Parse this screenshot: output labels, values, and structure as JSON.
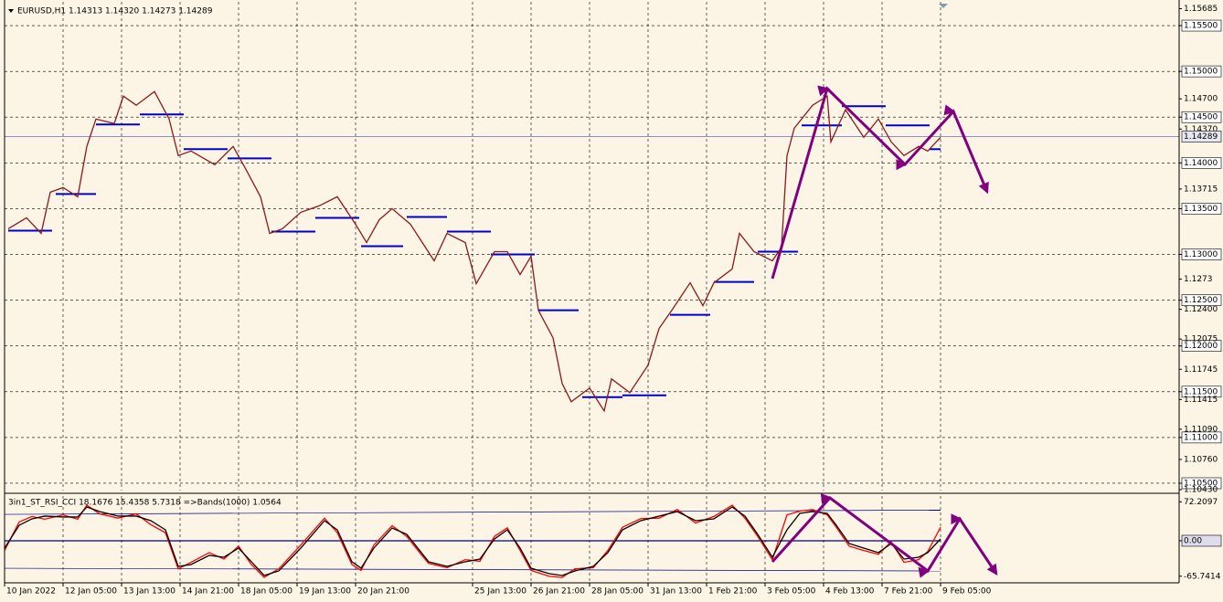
{
  "chart_data": [
    {
      "type": "line",
      "title": "EURUSD,H1  1.14313 1.14320 1.14273 1.14289",
      "x": [
        2,
        12,
        20,
        25,
        32,
        40,
        45,
        50,
        60,
        65,
        72,
        82,
        90,
        95,
        102,
        115,
        125,
        132,
        140,
        145,
        152,
        162,
        172,
        182,
        192,
        198,
        205,
        212,
        222,
        235,
        242,
        252,
        258,
        268,
        275,
        282,
        288,
        292,
        300,
        305,
        310,
        320,
        328,
        332,
        342,
        352,
        358,
        365,
        375,
        382,
        388,
        398,
        402,
        410,
        420,
        425,
        428,
        432,
        442,
        450,
        452,
        460,
        470,
        478,
        485,
        492,
        500,
        505,
        512
      ],
      "series": [
        {
          "color": "#8b1a1a",
          "values": [
            1.1328,
            1.134,
            1.1323,
            1.1368,
            1.1373,
            1.1363,
            1.1418,
            1.1448,
            1.1443,
            1.1473,
            1.1463,
            1.1478,
            1.1448,
            1.1408,
            1.1413,
            1.1398,
            1.1418,
            1.1393,
            1.1363,
            1.1323,
            1.1328,
            1.1346,
            1.1353,
            1.1363,
            1.1333,
            1.1313,
            1.1338,
            1.135,
            1.1333,
            1.1293,
            1.1323,
            1.1313,
            1.1268,
            1.1303,
            1.1303,
            1.1278,
            1.1298,
            1.1239,
            1.1209,
            1.1159,
            1.1139,
            1.1154,
            1.1129,
            1.1164,
            1.1149,
            1.1179,
            1.1219,
            1.1239,
            1.1269,
            1.1244,
            1.1269,
            1.1284,
            1.1323,
            1.1303,
            1.1293,
            1.1308,
            1.1408,
            1.1438,
            1.1463,
            1.1473,
            1.1423,
            1.1458,
            1.1428,
            1.1448,
            1.1423,
            1.1408,
            1.1418,
            1.1413,
            1.1428
          ]
        }
      ],
      "levels_color": "#0000cd",
      "levels": [
        {
          "x": [
            2,
            26
          ],
          "value": 1.1326
        },
        {
          "x": [
            28,
            50
          ],
          "value": 1.1366
        },
        {
          "x": [
            50,
            74
          ],
          "value": 1.1442
        },
        {
          "x": [
            74,
            98
          ],
          "value": 1.1453
        },
        {
          "x": [
            98,
            122
          ],
          "value": 1.1415
        },
        {
          "x": [
            122,
            146
          ],
          "value": 1.1405
        },
        {
          "x": [
            146,
            170
          ],
          "value": 1.1325
        },
        {
          "x": [
            170,
            194
          ],
          "value": 1.134
        },
        {
          "x": [
            195,
            218
          ],
          "value": 1.1309
        },
        {
          "x": [
            220,
            242
          ],
          "value": 1.1341
        },
        {
          "x": [
            242,
            266
          ],
          "value": 1.1325
        },
        {
          "x": [
            266,
            290
          ],
          "value": 1.13
        },
        {
          "x": [
            292,
            314
          ],
          "value": 1.1239
        },
        {
          "x": [
            316,
            338
          ],
          "value": 1.1144
        },
        {
          "x": [
            338,
            362
          ],
          "value": 1.1146
        },
        {
          "x": [
            364,
            386
          ],
          "value": 1.1234
        },
        {
          "x": [
            388,
            410
          ],
          "value": 1.127
        },
        {
          "x": [
            412,
            434
          ],
          "value": 1.1303
        },
        {
          "x": [
            436,
            458
          ],
          "value": 1.1441
        },
        {
          "x": [
            458,
            482
          ],
          "value": 1.1462
        },
        {
          "x": [
            482,
            506
          ],
          "value": 1.1441
        },
        {
          "x": [
            506,
            512
          ],
          "value": 1.1415
        }
      ],
      "current_price": 1.14289,
      "xlim": [
        0,
        642.5
      ],
      "ylim": [
        1.1042,
        1.1576
      ],
      "yticks": [
        {
          "value": 1.155,
          "label": "1.15500"
        },
        {
          "value": 1.15,
          "label": "1.15000"
        },
        {
          "value": 1.145,
          "label": "1.14500"
        },
        {
          "value": 1.14,
          "label": "1.14000"
        },
        {
          "value": 1.135,
          "label": "1.13500"
        },
        {
          "value": 1.13,
          "label": "1.13000"
        },
        {
          "value": 1.125,
          "label": "1.12500"
        },
        {
          "value": 1.12,
          "label": "1.12000"
        },
        {
          "value": 1.115,
          "label": "1.11500"
        },
        {
          "value": 1.11,
          "label": "1.11000"
        },
        {
          "value": 1.105,
          "label": "1.10500"
        }
      ],
      "yticks_minor": [
        1.15685,
        {
          "value": 1.147,
          "label": "1.14700"
        },
        {
          "value": 1.1437,
          "label": "1.14370"
        },
        1.13715,
        1.1273,
        {
          "value": 1.124,
          "label": "1.12400"
        },
        1.12075,
        1.11745,
        1.11415,
        {
          "value": 1.1109,
          "label": "1.11090"
        },
        {
          "value": 1.1076,
          "label": "1.10760"
        },
        {
          "value": 1.1043,
          "label": "1.10430"
        }
      ],
      "grid": true
    },
    {
      "type": "line",
      "title": "3in1_ST_RSI_CCI 18.1676 15.4358 5.7318  =>Bands(1000) 1.0564",
      "x": [
        0,
        8,
        15,
        22,
        32,
        40,
        45,
        52,
        62,
        72,
        80,
        88,
        95,
        102,
        112,
        120,
        128,
        135,
        142,
        150,
        162,
        175,
        182,
        190,
        195,
        202,
        212,
        220,
        228,
        232,
        242,
        252,
        260,
        268,
        275,
        282,
        288,
        298,
        305,
        312,
        322,
        330,
        338,
        348,
        358,
        368,
        378,
        388,
        398,
        405,
        412,
        420,
        428,
        435,
        442,
        450,
        455,
        462,
        470,
        478,
        485,
        492,
        500,
        505,
        512
      ],
      "series": [
        {
          "color": "#000000",
          "values": [
            -13.6,
            28.8,
            40.7,
            45.8,
            44.1,
            44.1,
            62.7,
            54.2,
            45.8,
            45.8,
            37.3,
            20.3,
            -47.5,
            -44.1,
            -27.1,
            -30.5,
            -13.6,
            -39.0,
            -64.4,
            -55.9,
            -13.6,
            37.3,
            20.3,
            -39.0,
            -50.8,
            -13.6,
            23.7,
            11.9,
            -22.0,
            -39.0,
            -47.5,
            -39.0,
            -33.9,
            3.4,
            20.3,
            -13.6,
            -50.8,
            -61.0,
            -64.4,
            -55.9,
            -47.5,
            -22.0,
            20.3,
            37.3,
            45.8,
            54.2,
            37.3,
            40.7,
            62.7,
            45.8,
            11.9,
            -30.5,
            20.3,
            50.8,
            54.2,
            50.8,
            28.8,
            -5.1,
            -13.6,
            -22.0,
            -5.1,
            -33.9,
            -30.5,
            -22.0,
            3.4
          ]
        },
        {
          "color": "#ff0000",
          "values": [
            -18,
            35,
            45,
            40,
            48,
            40,
            66,
            50,
            42,
            50,
            30,
            15,
            -52,
            -40,
            -22,
            -34,
            -10,
            -44,
            -68,
            -52,
            -8,
            42,
            15,
            -44,
            -55,
            -8,
            28,
            8,
            -26,
            -42,
            -50,
            -35,
            -38,
            8,
            24,
            -18,
            -55,
            -66,
            -68,
            -52,
            -50,
            -18,
            25,
            41,
            42,
            58,
            33,
            45,
            66,
            42,
            8,
            -35,
            48,
            55,
            58,
            48,
            25,
            -10,
            -18,
            -25,
            -2,
            -40,
            -35,
            -20,
            25
          ]
        }
      ],
      "bands_color": "#00008b",
      "bands": [
        {
          "x": [
            0,
            512
          ],
          "values": [
            49,
            57
          ]
        },
        {
          "x": [
            0,
            512
          ],
          "values": [
            0,
            0
          ]
        },
        {
          "x": [
            0,
            512
          ],
          "values": [
            -51,
            -56
          ]
        }
      ],
      "xlim": [
        0,
        642.5
      ],
      "ylim": [
        -78,
        83
      ],
      "yticks": [
        72.2097,
        {
          "value": 0,
          "label": "0.00"
        },
        -65.7414
      ],
      "xticks": [
        {
          "value": 0,
          "label": "10 Jan 2022"
        },
        {
          "value": 32,
          "label": "12 Jan 05:00"
        },
        {
          "value": 64,
          "label": "13 Jan 13:00"
        },
        {
          "value": 96,
          "label": "14 Jan 21:00"
        },
        {
          "value": 128,
          "label": "18 Jan 05:00"
        },
        {
          "value": 160,
          "label": "19 Jan 13:00"
        },
        {
          "value": 192,
          "label": "20 Jan 21:00"
        },
        {
          "value": 256,
          "label": "25 Jan 13:00"
        },
        {
          "value": 288,
          "label": "26 Jan 21:00"
        },
        {
          "value": 320,
          "label": "28 Jan 05:00"
        },
        {
          "value": 352,
          "label": "31 Jan 13:00"
        },
        {
          "value": 384,
          "label": "1 Feb 21:00"
        },
        {
          "value": 416,
          "label": "3 Feb 05:00"
        },
        {
          "value": 448,
          "label": "4 Feb 13:00"
        },
        {
          "value": 480,
          "label": "7 Feb 21:00"
        },
        {
          "value": 512,
          "label": "9 Feb 05:00"
        }
      ],
      "grid": true
    }
  ]
}
